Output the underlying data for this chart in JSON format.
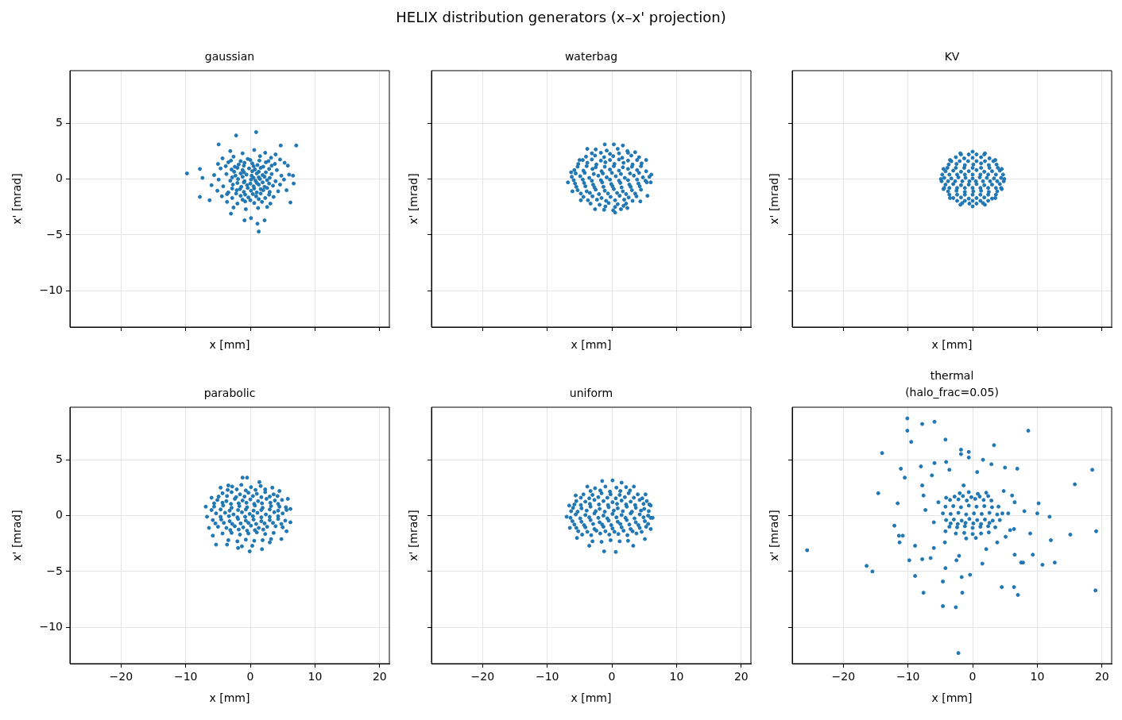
{
  "chart_data": [
    {
      "type": "other",
      "title": "HELIX distribution generators (x–x' projection)"
    },
    {
      "type": "scatter",
      "title": "gaussian",
      "xlabel": "x [mm]",
      "ylabel": "x' [mrad]",
      "color": "#1f77b4",
      "marker": "circle",
      "xlim": [
        -27.9,
        21.5
      ],
      "ylim": [
        -13.25,
        9.7
      ],
      "xticks": [
        -20,
        -10,
        0,
        10,
        20
      ],
      "yticks": [
        -10,
        -5,
        0,
        5
      ],
      "grid": true,
      "tick_labels": "y",
      "x": [
        -9.8,
        0.9,
        7.1,
        1.3,
        1.1,
        -0.9,
        -7.8,
        -7.8,
        -2.2,
        -4.9,
        4.7,
        6.7,
        6.2,
        2.2,
        -3.0,
        -6.3,
        -7.4,
        6.6,
        5.8,
        0.1,
        -3.1,
        -1.2,
        0.6,
        2.3,
        3.9,
        -4.3,
        -2.6,
        -0.4,
        1.5,
        3.2,
        4.6,
        -5.0,
        -3.4,
        -1.8,
        -0.9,
        0.3,
        1.1,
        2.4,
        3.8,
        5.3,
        -4.6,
        -2.9,
        -2.0,
        -1.2,
        -0.2,
        0.7,
        1.6,
        2.9,
        4.1,
        -5.6,
        -3.7,
        -2.3,
        -1.5,
        -0.6,
        0.2,
        1.0,
        1.9,
        3.3,
        4.8,
        6.0,
        -4.9,
        -3.1,
        -1.9,
        -0.9,
        0.1,
        0.8,
        1.5,
        2.6,
        3.9,
        5.2,
        -6.0,
        -4.2,
        -2.7,
        -1.4,
        -0.5,
        0.5,
        1.3,
        2.2,
        3.5,
        4.6,
        -5.1,
        -3.4,
        -2.1,
        -1.0,
        0.1,
        1.0,
        2.0,
        3.0,
        4.3,
        5.6,
        -4.4,
        -2.8,
        -1.5,
        -0.3,
        0.9,
        2.3,
        3.6,
        -3.6,
        -2.0,
        -0.8,
        0.6,
        1.8,
        3.1,
        -2.6,
        -0.7,
        1.2,
        2.6,
        -3.0,
        -1.5,
        0.0,
        1.4,
        2.8,
        -3.8,
        -2.4,
        -1.0,
        0.5,
        2.0,
        3.3,
        -2.5,
        -1.0,
        0.3,
        1.3,
        2.4,
        -2.8,
        -1.2,
        0.5,
        1.3,
        2.2,
        3.0,
        -2.0,
        -1.0,
        0.0,
        1.0,
        1.9,
        2.9,
        -2.8,
        -1.6,
        -0.4,
        0.6,
        1.6,
        2.6,
        -3.6,
        -2.2,
        -0.8,
        0.4,
        1.6,
        2.9,
        -1.2,
        0.0,
        1.3
      ],
      "values": [
        0.5,
        4.2,
        3.0,
        -4.7,
        -4.0,
        -3.7,
        -1.6,
        0.9,
        3.9,
        3.1,
        3.0,
        -0.4,
        -2.1,
        -3.7,
        -3.1,
        -1.9,
        0.1,
        0.3,
        1.2,
        -3.5,
        2.5,
        2.3,
        2.6,
        2.35,
        2.2,
        1.85,
        2.0,
        1.8,
        2.05,
        1.9,
        1.75,
        1.35,
        1.5,
        1.3,
        1.45,
        1.4,
        1.25,
        1.5,
        1.35,
        1.45,
        0.95,
        0.85,
        1.0,
        0.8,
        0.95,
        0.85,
        1.0,
        0.9,
        0.8,
        0.35,
        0.45,
        0.3,
        0.5,
        0.4,
        0.3,
        0.5,
        0.35,
        0.45,
        0.3,
        0.4,
        -0.05,
        -0.15,
        0.0,
        -0.2,
        -0.05,
        -0.15,
        0.0,
        -0.1,
        -0.2,
        -0.05,
        -0.55,
        -0.65,
        -0.5,
        -0.7,
        -0.55,
        -0.65,
        -0.5,
        -0.7,
        -0.6,
        -0.5,
        -1.05,
        -1.2,
        -1.0,
        -1.15,
        -1.05,
        -1.2,
        -1.0,
        -1.15,
        -1.1,
        -1.0,
        -1.55,
        -1.7,
        -1.5,
        -1.65,
        -1.55,
        -1.7,
        -1.6,
        -2.05,
        -2.2,
        -2.0,
        -2.15,
        -2.05,
        -2.2,
        -2.55,
        -2.7,
        -2.6,
        -2.5,
        1.65,
        1.6,
        1.7,
        1.65,
        1.6,
        1.15,
        1.1,
        1.2,
        1.15,
        1.1,
        1.2,
        0.65,
        0.6,
        0.7,
        0.65,
        0.6,
        0.15,
        0.2,
        0.1,
        0.15,
        0.2,
        0.1,
        -0.35,
        -0.3,
        -0.4,
        -0.35,
        -0.3,
        -0.4,
        -0.85,
        -0.9,
        -0.8,
        -0.85,
        -0.9,
        -0.8,
        -1.35,
        -1.3,
        -1.4,
        -1.35,
        -1.3,
        -1.4,
        -1.85,
        -1.9,
        -1.8
      ]
    },
    {
      "type": "scatter",
      "title": "waterbag",
      "xlabel": "x [mm]",
      "ylabel": "x' [mrad]",
      "color": "#1f77b4",
      "marker": "circle",
      "xlim": [
        -27.9,
        21.5
      ],
      "ylim": [
        -13.25,
        9.7
      ],
      "xticks": [
        -20,
        -10,
        0,
        10,
        20
      ],
      "yticks": [
        -10,
        -5,
        0,
        5
      ],
      "grid": true,
      "tick_labels": false,
      "x": [
        -1.1,
        0.3,
        1.7,
        -3.8,
        3.6,
        -5.0,
        5.3,
        -6.3,
        6.1,
        -6.8,
        6.0,
        -6.1,
        5.5,
        -4.8,
        4.4,
        -2.6,
        0.5,
        2.4,
        -2.5,
        -0.8,
        0.9,
        2.4,
        -4.0,
        -2.6,
        -1.2,
        0.2,
        1.6,
        3.0,
        4.2,
        -5.2,
        -3.8,
        -2.4,
        -1.0,
        0.4,
        1.8,
        3.2,
        4.6,
        -5.8,
        -4.4,
        -3.0,
        -1.6,
        -0.3,
        1.1,
        2.5,
        3.9,
        5.3,
        -6.2,
        -4.9,
        -3.5,
        -2.1,
        -0.8,
        0.6,
        2.0,
        3.4,
        4.8,
        5.8,
        -5.7,
        -4.3,
        -2.9,
        -1.5,
        -0.1,
        1.3,
        2.7,
        4.1,
        5.4,
        -5.3,
        -3.9,
        -2.5,
        -1.1,
        0.3,
        1.7,
        3.1,
        4.5,
        -4.4,
        -3.0,
        -1.6,
        -0.2,
        1.2,
        2.6,
        3.8,
        -3.3,
        -1.9,
        -0.5,
        0.9,
        2.2,
        -1.2,
        0.2,
        1.4,
        -3.1,
        -1.7,
        -0.3,
        1.1,
        2.5,
        -4.5,
        -3.1,
        -1.7,
        -0.3,
        1.1,
        2.5,
        3.9,
        -5.3,
        -3.9,
        -2.5,
        -1.1,
        0.3,
        1.7,
        3.1,
        4.5,
        -5.6,
        -4.2,
        -2.8,
        -1.4,
        0.0,
        1.4,
        2.8,
        4.2,
        -5.9,
        -4.5,
        -3.1,
        -1.7,
        -0.3,
        1.1,
        2.5,
        3.9,
        5.2,
        -5.5,
        -4.1,
        -2.7,
        -1.3,
        0.1,
        1.5,
        2.9,
        4.3,
        -4.8,
        -3.4,
        -2.0,
        -0.6,
        0.8,
        2.2,
        3.6,
        -3.7,
        -2.3,
        -0.9,
        0.5,
        1.9,
        3.2,
        -1.0,
        0.5,
        1.8
      ],
      "values": [
        3.1,
        3.1,
        3.0,
        2.7,
        2.4,
        1.7,
        1.7,
        0.6,
        0.4,
        -0.3,
        -0.3,
        -1.1,
        -1.5,
        -1.9,
        -2.0,
        -2.7,
        -3.0,
        -2.6,
        2.65,
        2.55,
        2.7,
        2.5,
        2.0,
        2.1,
        1.95,
        2.05,
        1.9,
        2.1,
        1.95,
        1.35,
        1.45,
        1.3,
        1.5,
        1.35,
        1.45,
        1.3,
        1.4,
        0.8,
        0.75,
        0.9,
        0.7,
        0.85,
        0.75,
        0.9,
        0.8,
        0.7,
        0.2,
        0.25,
        0.1,
        0.3,
        0.15,
        0.25,
        0.1,
        0.3,
        0.15,
        0.2,
        -0.4,
        -0.35,
        -0.5,
        -0.3,
        -0.45,
        -0.35,
        -0.5,
        -0.4,
        -0.3,
        -1.0,
        -1.1,
        -0.95,
        -1.05,
        -0.9,
        -1.1,
        -1.0,
        -0.95,
        -1.6,
        -1.55,
        -1.7,
        -1.6,
        -1.5,
        -1.65,
        -1.55,
        -2.2,
        -2.3,
        -2.15,
        -2.25,
        -2.2,
        -2.75,
        -2.8,
        -2.7,
        2.3,
        2.35,
        2.25,
        2.3,
        2.35,
        1.7,
        1.75,
        1.65,
        1.7,
        1.75,
        1.65,
        1.7,
        1.1,
        1.15,
        1.05,
        1.1,
        1.15,
        1.05,
        1.1,
        1.15,
        0.5,
        0.55,
        0.45,
        0.5,
        0.55,
        0.45,
        0.5,
        0.55,
        -0.1,
        -0.05,
        -0.15,
        -0.1,
        -0.05,
        -0.15,
        -0.1,
        -0.05,
        -0.15,
        -0.7,
        -0.65,
        -0.75,
        -0.7,
        -0.65,
        -0.75,
        -0.7,
        -0.65,
        -1.3,
        -1.25,
        -1.35,
        -1.3,
        -1.25,
        -1.35,
        -1.3,
        -1.9,
        -1.85,
        -1.95,
        -1.9,
        -1.85,
        -1.95,
        -2.45,
        -2.5,
        -2.4
      ]
    },
    {
      "type": "scatter",
      "title": "KV",
      "xlabel": "x [mm]",
      "ylabel": "x' [mrad]",
      "color": "#1f77b4",
      "marker": "circle",
      "xlim": [
        -27.9,
        21.5
      ],
      "ylim": [
        -13.25,
        9.7
      ],
      "xticks": [
        -20,
        -10,
        0,
        10,
        20
      ],
      "yticks": [
        -10,
        -5,
        0,
        5
      ],
      "grid": true,
      "tick_labels": false,
      "x": [
        4.9,
        4.5,
        3.5,
        1.9,
        0.0,
        -1.9,
        -3.5,
        -4.5,
        -4.9,
        -4.5,
        -3.5,
        -1.9,
        0.0,
        1.9,
        3.5,
        4.5,
        -2.6,
        -1.3,
        0.0,
        1.3,
        2.6,
        -3.7,
        -2.5,
        -1.2,
        0.1,
        1.3,
        2.5,
        3.7,
        -4.2,
        -3.0,
        -1.8,
        -0.6,
        0.6,
        1.8,
        3.0,
        4.2,
        -4.4,
        -3.3,
        -2.2,
        -1.1,
        0.0,
        1.1,
        2.2,
        3.3,
        4.4,
        -4.2,
        -3.0,
        -1.8,
        -0.6,
        0.6,
        1.8,
        3.0,
        4.2,
        -3.8,
        -2.5,
        -1.2,
        0.1,
        1.3,
        2.5,
        3.8,
        -3.0,
        -1.8,
        -0.6,
        0.6,
        1.8,
        3.0,
        -1.6,
        -0.5,
        0.6,
        1.6,
        -1.8,
        -0.6,
        0.6,
        1.8,
        -3.3,
        -2.0,
        -0.7,
        0.6,
        1.9,
        3.2,
        -3.9,
        -2.6,
        -1.3,
        0.0,
        1.3,
        2.6,
        3.9,
        -4.7,
        -3.6,
        -2.4,
        -1.2,
        0.0,
        1.2,
        2.4,
        3.6,
        4.7,
        -4.8,
        -3.8,
        -2.7,
        -1.6,
        -0.5,
        0.5,
        1.6,
        2.7,
        3.8,
        4.8,
        -4.4,
        -3.6,
        -2.4,
        -1.2,
        0.0,
        1.2,
        2.4,
        3.6,
        4.4,
        -3.6,
        -2.4,
        -1.2,
        0.0,
        1.2,
        2.4,
        3.6,
        -2.4,
        -1.2,
        0.0,
        1.2,
        2.4
      ],
      "values": [
        0.0,
        0.9,
        1.7,
        2.3,
        2.45,
        2.3,
        1.7,
        0.9,
        0.0,
        -0.9,
        -1.7,
        -2.3,
        -2.45,
        -2.3,
        -1.7,
        -0.9,
        1.95,
        1.85,
        1.9,
        1.95,
        1.85,
        1.3,
        1.35,
        1.25,
        1.3,
        1.4,
        1.25,
        1.3,
        0.7,
        0.75,
        0.65,
        0.7,
        0.8,
        0.65,
        0.7,
        0.75,
        0.1,
        0.05,
        0.15,
        0.1,
        0.05,
        0.15,
        0.1,
        0.05,
        0.1,
        -0.5,
        -0.45,
        -0.55,
        -0.5,
        -0.45,
        -0.55,
        -0.5,
        -0.45,
        -1.1,
        -1.05,
        -1.15,
        -1.1,
        -1.05,
        -1.15,
        -1.1,
        -1.7,
        -1.65,
        -1.75,
        -1.7,
        -1.65,
        -1.75,
        -2.15,
        -2.2,
        -2.2,
        -2.15,
        2.2,
        2.2,
        2.2,
        2.2,
        1.6,
        1.6,
        1.6,
        1.6,
        1.6,
        1.6,
        1.0,
        1.0,
        1.0,
        1.0,
        1.0,
        1.0,
        1.0,
        0.4,
        0.4,
        0.4,
        0.4,
        0.4,
        0.4,
        0.4,
        0.4,
        0.4,
        -0.2,
        -0.2,
        -0.2,
        -0.2,
        -0.2,
        -0.2,
        -0.2,
        -0.2,
        -0.2,
        -0.2,
        -0.8,
        -0.8,
        -0.8,
        -0.8,
        -0.8,
        -0.8,
        -0.8,
        -0.8,
        -0.8,
        -1.4,
        -1.4,
        -1.4,
        -1.4,
        -1.4,
        -1.4,
        -1.4,
        -1.95,
        -1.95,
        -1.95,
        -1.95,
        -1.95
      ]
    },
    {
      "type": "scatter",
      "title": "parabolic",
      "xlabel": "x [mm]",
      "ylabel": "x' [mrad]",
      "color": "#1f77b4",
      "marker": "circle",
      "xlim": [
        -27.9,
        21.5
      ],
      "ylim": [
        -13.25,
        9.7
      ],
      "xticks": [
        -20,
        -10,
        0,
        10,
        20
      ],
      "yticks": [
        -10,
        -5,
        0,
        5
      ],
      "grid": true,
      "x": [
        -6.9,
        -6.7,
        -6.0,
        -4.6,
        -3.4,
        -1.2,
        -0.5,
        1.4,
        3.4,
        4.5,
        5.8,
        6.2,
        6.2,
        5.6,
        4.8,
        3.0,
        1.8,
        -0.1,
        -1.9,
        -3.6,
        -5.3,
        -5.8,
        -6.4,
        -2.8,
        -1.4,
        0.1,
        1.6,
        -4.3,
        -2.9,
        -1.6,
        -0.3,
        1.0,
        2.3,
        3.6,
        -5.1,
        -3.7,
        -2.4,
        -1.2,
        0.0,
        1.2,
        2.5,
        3.8,
        4.9,
        -5.6,
        -4.2,
        -2.9,
        -1.7,
        -0.5,
        0.7,
        1.9,
        3.2,
        4.5,
        5.5,
        -5.3,
        -3.9,
        -2.6,
        -1.3,
        -0.1,
        1.1,
        2.4,
        3.7,
        5.0,
        -5.8,
        -4.5,
        -3.2,
        -1.9,
        -0.7,
        0.5,
        1.7,
        3.0,
        4.3,
        5.4,
        -5.0,
        -3.7,
        -2.4,
        -1.1,
        0.1,
        1.3,
        2.6,
        3.9,
        5.0,
        -4.3,
        -2.9,
        -1.6,
        -0.3,
        1.0,
        2.3,
        3.6,
        -3.4,
        -2.0,
        -0.7,
        0.6,
        1.9,
        3.2,
        -1.3,
        0.3,
        -3.5,
        -2.1,
        -0.7,
        0.8,
        2.3,
        -4.9,
        -3.6,
        -2.2,
        -0.9,
        0.4,
        1.7,
        3.0,
        4.2,
        -5.6,
        -4.3,
        -3.0,
        -1.8,
        -0.6,
        0.6,
        1.8,
        3.1,
        4.3,
        -6.0,
        -4.6,
        -3.2,
        -1.9,
        -0.7,
        0.5,
        1.7,
        3.0,
        4.3,
        5.6,
        -4.6,
        -3.3,
        -2.0,
        -0.8,
        0.4,
        1.7,
        3.0,
        4.3,
        -5.4,
        -4.1,
        -2.8,
        -1.5,
        -0.3,
        0.9,
        2.2,
        3.5,
        4.8,
        -3.1,
        -1.8,
        -0.5,
        0.7,
        2.0
      ],
      "values": [
        0.8,
        -0.1,
        1.6,
        2.5,
        2.7,
        3.4,
        3.4,
        3.0,
        2.5,
        2.2,
        1.5,
        0.6,
        -0.6,
        -1.4,
        -2.1,
        -2.4,
        -3.0,
        -3.2,
        -2.9,
        -2.6,
        -2.6,
        -1.8,
        -1.1,
        2.6,
        2.75,
        2.55,
        2.65,
        2.0,
        2.1,
        1.9,
        2.05,
        1.95,
        2.1,
        1.9,
        1.4,
        1.3,
        1.5,
        1.35,
        1.45,
        1.3,
        1.5,
        1.35,
        1.4,
        0.8,
        0.9,
        0.7,
        0.85,
        0.75,
        0.9,
        0.7,
        0.85,
        0.8,
        0.75,
        0.2,
        0.25,
        0.1,
        0.3,
        0.15,
        0.25,
        0.1,
        0.3,
        0.2,
        -0.4,
        -0.35,
        -0.5,
        -0.3,
        -0.45,
        -0.35,
        -0.5,
        -0.4,
        -0.3,
        -0.45,
        -1.0,
        -1.1,
        -0.95,
        -1.05,
        -0.9,
        -1.1,
        -1.0,
        -0.95,
        -1.05,
        -1.6,
        -1.55,
        -1.7,
        -1.6,
        -1.5,
        -1.65,
        -1.55,
        -2.2,
        -2.3,
        -2.15,
        -2.25,
        -2.2,
        -2.1,
        -2.75,
        -2.7,
        2.3,
        2.35,
        2.25,
        2.3,
        2.35,
        1.7,
        1.75,
        1.65,
        1.7,
        1.75,
        1.65,
        1.7,
        1.75,
        1.1,
        1.15,
        1.05,
        1.1,
        1.15,
        1.05,
        1.1,
        1.15,
        1.05,
        0.5,
        0.55,
        0.45,
        0.5,
        0.55,
        0.45,
        0.5,
        0.55,
        0.45,
        0.5,
        -0.1,
        -0.05,
        -0.15,
        -0.1,
        -0.05,
        -0.15,
        -0.1,
        -0.05,
        -0.7,
        -0.65,
        -0.75,
        -0.7,
        -0.65,
        -0.75,
        -0.7,
        -0.65,
        -0.75,
        -1.3,
        -1.25,
        -1.35,
        -1.3,
        -1.25
      ]
    },
    {
      "type": "scatter",
      "title": "uniform",
      "xlabel": "x [mm]",
      "ylabel": "x' [mrad]",
      "color": "#1f77b4",
      "marker": "circle",
      "xlim": [
        -27.9,
        21.5
      ],
      "ylim": [
        -13.25,
        9.7
      ],
      "xticks": [
        -20,
        -10,
        0,
        10,
        20
      ],
      "yticks": [
        -10,
        -5,
        0,
        5
      ],
      "grid": true,
      "tick_labels": "x",
      "x": [
        -1.5,
        0.1,
        1.5,
        -3.8,
        3.4,
        -5.6,
        5.2,
        -6.6,
        6.0,
        -7.0,
        6.3,
        -6.5,
        6.0,
        -5.4,
        5.1,
        -3.5,
        3.3,
        -1.2,
        0.6,
        -2.6,
        -1.0,
        0.7,
        2.2,
        -4.4,
        -3.0,
        -1.6,
        -0.2,
        1.2,
        2.6,
        4.0,
        -5.5,
        -4.1,
        -2.7,
        -1.3,
        0.1,
        1.5,
        2.9,
        4.3,
        5.4,
        -6.0,
        -4.7,
        -3.3,
        -1.9,
        -0.5,
        0.9,
        2.3,
        3.7,
        5.0,
        -5.6,
        -4.1,
        -2.7,
        -1.3,
        0.1,
        1.5,
        2.9,
        4.3,
        5.6,
        -6.1,
        -4.7,
        -3.3,
        -1.9,
        -0.5,
        0.9,
        2.3,
        3.7,
        5.1,
        -5.5,
        -4.1,
        -2.7,
        -1.3,
        0.1,
        1.5,
        2.9,
        4.3,
        5.3,
        -4.6,
        -3.2,
        -1.8,
        -0.4,
        1.0,
        2.4,
        3.8,
        -3.0,
        -1.6,
        -0.2,
        1.2,
        2.5,
        -3.3,
        -1.8,
        -0.3,
        1.3,
        2.8,
        -4.8,
        -3.5,
        -2.1,
        -0.7,
        0.6,
        2.0,
        3.4,
        4.7,
        -5.8,
        -4.8,
        -3.4,
        -2.0,
        -0.6,
        0.8,
        2.2,
        3.6,
        4.9,
        5.8,
        -6.3,
        -5.3,
        -3.9,
        -2.5,
        -1.1,
        0.3,
        1.7,
        3.1,
        4.5,
        5.7,
        -6.4,
        -4.9,
        -3.5,
        -2.1,
        -0.7,
        0.7,
        2.1,
        3.5,
        4.9,
        6.0,
        -5.8,
        -4.3,
        -2.9,
        -1.5,
        -0.1,
        1.3,
        2.7,
        4.1,
        5.6,
        -5.2,
        -3.8,
        -2.4,
        -1.0,
        0.4,
        1.8,
        3.2,
        4.6
      ],
      "values": [
        3.1,
        3.15,
        2.95,
        2.6,
        2.6,
        1.8,
        1.9,
        0.9,
        0.9,
        -0.1,
        -0.2,
        -1.1,
        -1.2,
        -2.0,
        -2.1,
        -2.7,
        -2.7,
        -3.2,
        -3.25,
        2.45,
        2.6,
        2.5,
        2.55,
        1.9,
        1.85,
        2.0,
        1.9,
        1.85,
        2.0,
        1.9,
        1.3,
        1.25,
        1.4,
        1.3,
        1.2,
        1.35,
        1.25,
        1.4,
        1.3,
        0.7,
        0.65,
        0.8,
        0.6,
        0.75,
        0.65,
        0.8,
        0.7,
        0.6,
        0.1,
        0.05,
        0.2,
        0.0,
        0.15,
        0.05,
        0.2,
        0.1,
        0.0,
        -0.5,
        -0.55,
        -0.4,
        -0.6,
        -0.45,
        -0.55,
        -0.4,
        -0.6,
        -0.5,
        -1.1,
        -1.05,
        -1.2,
        -1.0,
        -1.15,
        -1.05,
        -1.2,
        -1.1,
        -1.0,
        -1.7,
        -1.75,
        -1.6,
        -1.7,
        -1.65,
        -1.75,
        -1.6,
        -2.3,
        -2.35,
        -2.2,
        -2.3,
        -2.25,
        2.2,
        2.25,
        2.15,
        2.2,
        2.25,
        1.6,
        1.55,
        1.65,
        1.6,
        1.55,
        1.65,
        1.6,
        1.55,
        1.0,
        0.95,
        1.05,
        1.0,
        0.95,
        1.05,
        1.0,
        0.95,
        1.05,
        1.0,
        0.4,
        0.35,
        0.45,
        0.4,
        0.35,
        0.45,
        0.4,
        0.35,
        0.45,
        0.4,
        -0.2,
        -0.25,
        -0.15,
        -0.2,
        -0.25,
        -0.15,
        -0.2,
        -0.25,
        -0.15,
        -0.2,
        -0.8,
        -0.85,
        -0.75,
        -0.8,
        -0.85,
        -0.75,
        -0.8,
        -0.85,
        -0.75,
        -1.4,
        -1.45,
        -1.35,
        -1.4,
        -1.45,
        -1.35,
        -1.4,
        -1.45
      ]
    },
    {
      "type": "scatter",
      "title": "thermal",
      "subtitle": "(halo_frac=0.05)",
      "xlabel": "x [mm]",
      "ylabel": "x' [mrad]",
      "color": "#1f77b4",
      "marker": "circle",
      "xlim": [
        -27.9,
        21.5
      ],
      "ylim": [
        -13.25,
        9.7
      ],
      "xticks": [
        -20,
        -10,
        0,
        10,
        20
      ],
      "yticks": [
        -10,
        -5,
        0,
        5
      ],
      "grid": true,
      "tick_labels": "x",
      "x": [
        -10.1,
        -7.8,
        -5.9,
        -10.1,
        -9.5,
        -4.2,
        -14.0,
        -11.1,
        -8.0,
        -5.9,
        -4.1,
        -3.6,
        -10.5,
        -6.3,
        -7.8,
        -14.6,
        -7.6,
        -4.1,
        -11.6,
        -5.3,
        -7.3,
        -6.0,
        -12.1,
        -11.4,
        -10.8,
        -11.3,
        -8.9,
        -6.0,
        -4.3,
        -4.2,
        -25.6,
        -9.8,
        -7.8,
        -6.5,
        -16.4,
        -15.5,
        -4.2,
        -8.9,
        -4.6,
        -7.6,
        -4.6,
        8.6,
        3.3,
        -1.8,
        -0.6,
        -1.8,
        -0.6,
        1.6,
        2.9,
        5.0,
        6.9,
        0.7,
        18.5,
        15.8,
        -1.4,
        4.8,
        6.1,
        6.5,
        10.2,
        8.0,
        10.0,
        11.9,
        5.5,
        19.1,
        8.9,
        15.1,
        12.1,
        6.4,
        5.8,
        5.1,
        3.8,
        2.1,
        -2.1,
        -2.5,
        1.5,
        6.5,
        7.5,
        7.8,
        9.3,
        10.8,
        12.7,
        -1.7,
        -0.4,
        -1.6,
        -2.6,
        4.5,
        6.4,
        7.0,
        19.0,
        -2.2,
        -2.0,
        -0.6,
        0.8,
        2.1,
        -3.5,
        -2.2,
        -0.9,
        0.4,
        1.7,
        2.9,
        -4.2,
        -3.0,
        -1.8,
        -0.6,
        0.6,
        1.8,
        3.0,
        4.0,
        -4.6,
        -3.4,
        -2.2,
        -1.0,
        0.2,
        1.4,
        2.6,
        3.8,
        4.6,
        -4.1,
        -2.9,
        -1.7,
        -0.5,
        0.7,
        1.9,
        3.1,
        4.2,
        -3.6,
        -2.4,
        -1.2,
        0.0,
        1.2,
        2.4,
        3.5,
        -2.6,
        -1.3,
        0.0,
        1.3,
        2.5,
        -1.0,
        0.5,
        -2.8,
        -1.5,
        -0.2,
        1.1,
        2.4,
        -3.4,
        -2.3,
        -1.1,
        0.1,
        1.3,
        2.6
      ],
      "values": [
        8.7,
        8.2,
        8.4,
        7.6,
        6.6,
        6.8,
        5.6,
        4.2,
        4.4,
        4.7,
        4.8,
        4.1,
        3.4,
        3.6,
        2.7,
        2.0,
        1.8,
        1.6,
        1.1,
        1.2,
        0.5,
        -0.6,
        -0.9,
        -1.8,
        -1.8,
        -2.4,
        -2.7,
        -2.9,
        -2.4,
        -1.4,
        -3.1,
        -4.0,
        -3.9,
        -3.8,
        -4.5,
        -5.0,
        -4.7,
        -5.4,
        -5.9,
        -6.9,
        -8.1,
        7.6,
        6.3,
        5.9,
        5.7,
        5.5,
        5.2,
        5.0,
        4.6,
        4.3,
        4.2,
        3.9,
        4.1,
        2.8,
        2.7,
        2.2,
        1.8,
        1.2,
        1.1,
        0.4,
        0.2,
        -0.1,
        0.2,
        -1.4,
        -1.6,
        -1.7,
        -2.2,
        -1.2,
        -1.3,
        -1.9,
        -2.4,
        -3.0,
        -3.6,
        -4.0,
        -4.3,
        -3.5,
        -4.2,
        -4.2,
        -3.5,
        -4.4,
        -4.2,
        -5.5,
        -5.3,
        -6.9,
        -8.2,
        -6.4,
        -6.4,
        -7.1,
        -6.7,
        -12.3,
        2.0,
        2.1,
        1.95,
        2.05,
        1.4,
        1.45,
        1.35,
        1.5,
        1.4,
        1.35,
        0.8,
        0.85,
        0.75,
        0.9,
        0.8,
        0.85,
        0.75,
        0.8,
        0.2,
        0.15,
        0.25,
        0.1,
        0.2,
        0.15,
        0.25,
        0.1,
        0.2,
        -0.4,
        -0.35,
        -0.45,
        -0.3,
        -0.4,
        -0.35,
        -0.45,
        -0.4,
        -1.0,
        -1.05,
        -0.95,
        -1.1,
        -1.0,
        -0.95,
        -1.05,
        -1.6,
        -1.55,
        -1.65,
        -1.6,
        -1.5,
        -2.05,
        -2.0,
        1.7,
        1.75,
        1.65,
        1.7,
        1.75,
        -0.7,
        -0.75,
        -0.65,
        -0.7,
        -0.75,
        -0.65
      ]
    }
  ]
}
